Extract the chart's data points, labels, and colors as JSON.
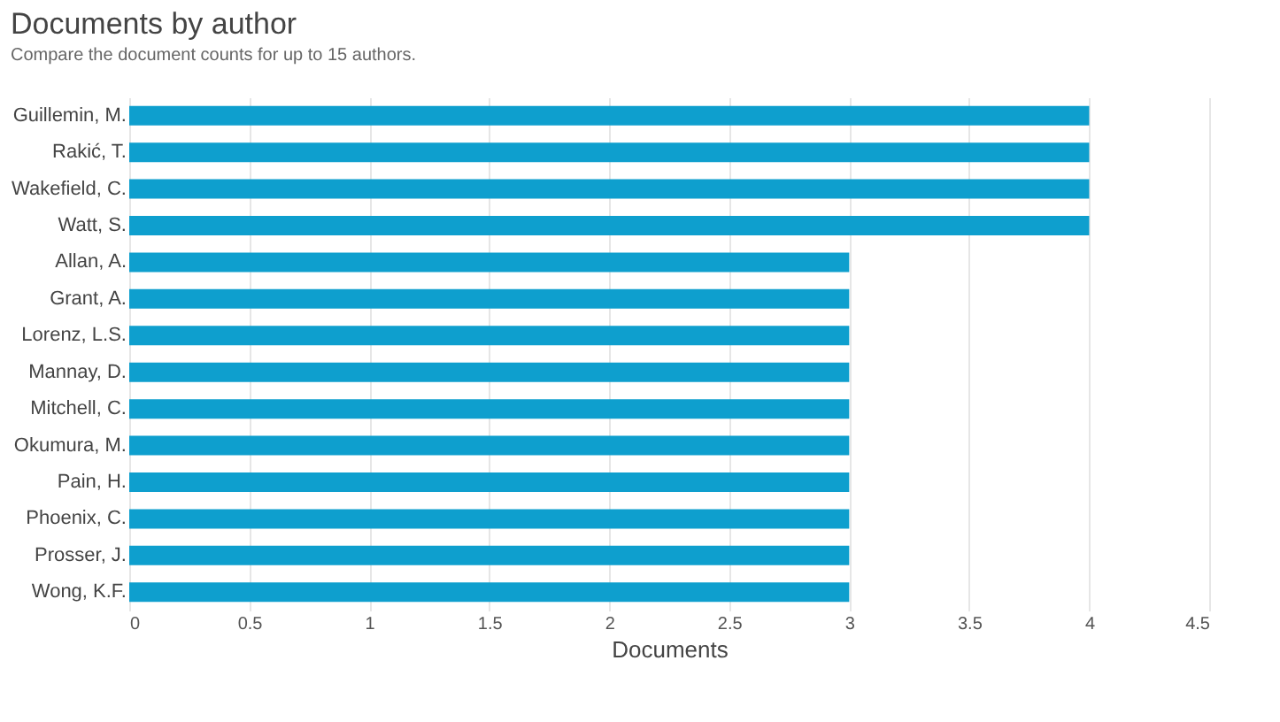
{
  "chart_data": {
    "type": "bar",
    "orientation": "horizontal",
    "title": "Documents by author",
    "subtitle": "Compare the document counts for up to 15 authors.",
    "xlabel": "Documents",
    "categories": [
      "Guillemin, M.",
      "Rakić, T.",
      "Wakefield, C.",
      "Watt, S.",
      "Allan, A.",
      "Grant, A.",
      "Lorenz, L.S.",
      "Mannay, D.",
      "Mitchell, C.",
      "Okumura, M.",
      "Pain, H.",
      "Phoenix, C.",
      "Prosser, J.",
      "Wong, K.F."
    ],
    "values": [
      4,
      4,
      4,
      4,
      3,
      3,
      3,
      3,
      3,
      3,
      3,
      3,
      3,
      3
    ],
    "color": "#0e9fce",
    "xlim": [
      0,
      4.5
    ],
    "xticks": [
      0,
      0.5,
      1,
      1.5,
      2,
      2.5,
      3,
      3.5,
      4,
      4.5
    ],
    "grid": "x"
  }
}
